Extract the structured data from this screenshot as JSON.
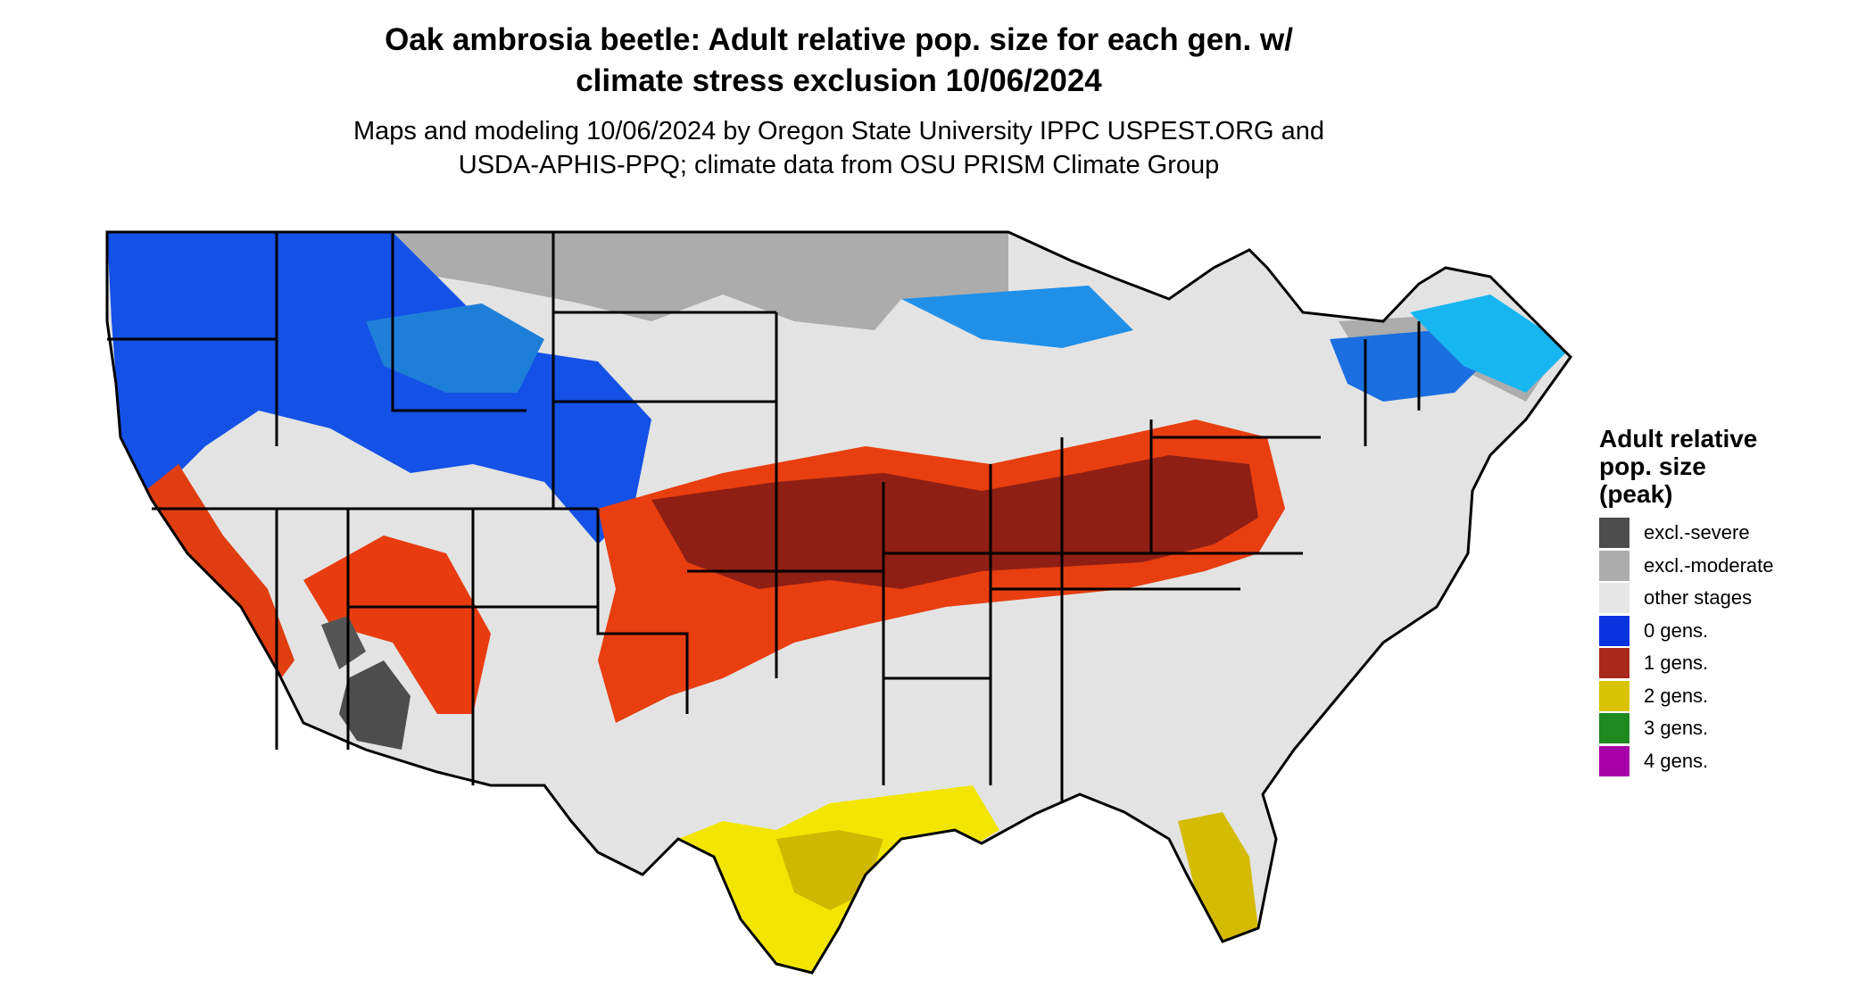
{
  "header": {
    "title_line1": "Oak ambrosia beetle: Adult relative pop. size for each gen. w/",
    "title_line2": "climate stress exclusion 10/06/2024",
    "subtitle_line1": "Maps and modeling 10/06/2024 by Oregon State University IPPC USPEST.ORG and",
    "subtitle_line2": "USDA-APHIS-PPQ; climate data from OSU PRISM Climate Group"
  },
  "map": {
    "region": "Contiguous United States",
    "base_color": "#e3e3e3",
    "border_color": "#000000"
  },
  "legend": {
    "title_line1": "Adult relative",
    "title_line2": "pop. size",
    "title_line3": "(peak)",
    "items": [
      {
        "label": "excl.-severe",
        "color": "#4d4d4d"
      },
      {
        "label": "excl.-moderate",
        "color": "#acacac"
      },
      {
        "label": "other stages",
        "color": "#e6e6e6"
      },
      {
        "label": "0 gens.",
        "color": "#0a33e0"
      },
      {
        "label": "1 gens.",
        "color": "#a8281a"
      },
      {
        "label": "2 gens.",
        "color": "#d9c300"
      },
      {
        "label": "3 gens.",
        "color": "#1f8a1f"
      },
      {
        "label": "4 gens.",
        "color": "#a600a6"
      }
    ]
  }
}
